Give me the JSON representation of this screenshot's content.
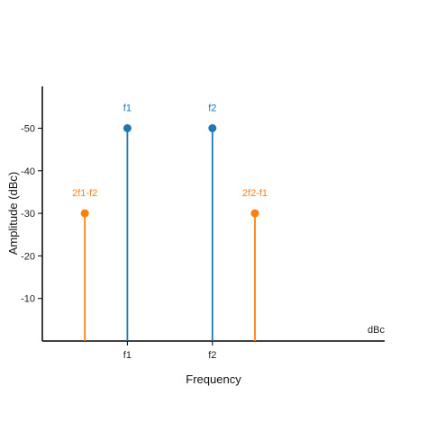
{
  "chart_data": {
    "type": "stem",
    "title": "",
    "xlabel": "Frequency",
    "ylabel": "Amplitude (dBc)",
    "unit_label": "dBc",
    "ylim": [
      0,
      60
    ],
    "yticks": [
      {
        "value": 10,
        "label": "-10"
      },
      {
        "value": 20,
        "label": "-20"
      },
      {
        "value": 30,
        "label": "-30"
      },
      {
        "value": 40,
        "label": "-40"
      },
      {
        "value": 50,
        "label": "-50"
      }
    ],
    "xticks": [
      {
        "value": 2,
        "label": "f1"
      },
      {
        "value": 4,
        "label": "f2"
      }
    ],
    "xlim": [
      0,
      8
    ],
    "grid": false,
    "series": [
      {
        "color": "#1f77b4",
        "points": [
          {
            "x": 2,
            "y": 50,
            "label": "f1"
          },
          {
            "x": 4,
            "y": 50,
            "label": "f2"
          }
        ]
      },
      {
        "color": "#ff7f0e",
        "points": [
          {
            "x": 1,
            "y": 30,
            "label": "2f1-f2"
          },
          {
            "x": 5,
            "y": 30,
            "label": "2f2-f1"
          }
        ]
      }
    ]
  }
}
